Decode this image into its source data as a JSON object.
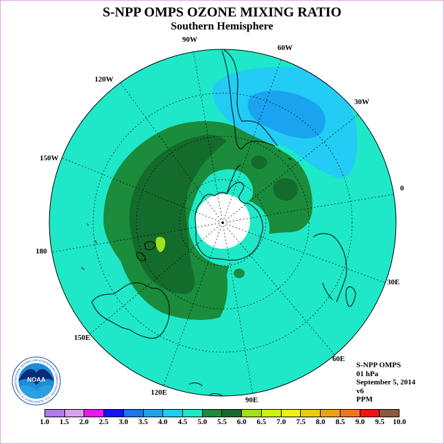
{
  "header": {
    "title": "S-NPP OMPS OZONE MIXING RATIO",
    "subtitle": "Southern Hemisphere"
  },
  "map": {
    "projection": "south-polar-stereographic",
    "longitude_labels": [
      "90W",
      "60W",
      "120W",
      "30W",
      "150W",
      "0",
      "180",
      "30E",
      "150E",
      "60E",
      "120E",
      "90E"
    ],
    "field_regions": [
      {
        "name": "background",
        "range": "4.5-5.0",
        "color": "#1ee8c8"
      },
      {
        "name": "south-atlantic-low",
        "range": "4.0-4.5",
        "color": "#22ccf5"
      },
      {
        "name": "south-atlantic-low-core",
        "range": "3.5-4.0",
        "color": "#1aa4f0"
      },
      {
        "name": "polar-ring",
        "range": "5.0-5.5",
        "color": "#1a8c3c"
      },
      {
        "name": "polar-ring-core",
        "range": "5.5-6.0",
        "color": "#146c2c"
      },
      {
        "name": "small-max",
        "range": "6.0-6.5",
        "color": "#a0e01e"
      },
      {
        "name": "polar-night-no-data",
        "range": "",
        "color": "#ffffff"
      }
    ]
  },
  "info": {
    "instrument": "S-NPP OMPS",
    "level": "01 hPa",
    "date": "September 5, 2014",
    "version": "v6",
    "units": "PPM"
  },
  "colorbar": {
    "labels": [
      "1.0",
      "1.5",
      "2.0",
      "2.5",
      "3.0",
      "3.5",
      "4.0",
      "4.5",
      "5.0",
      "5.5",
      "6.0",
      "6.5",
      "7.0",
      "7.5",
      "8.0",
      "8.5",
      "9.0",
      "9.5",
      "10.0"
    ],
    "colors": [
      "#b478f0",
      "#d8a0f0",
      "#f014f0",
      "#1414f0",
      "#1478f0",
      "#1aa4f0",
      "#22ccf5",
      "#1ee8c8",
      "#1a8c3c",
      "#146c2c",
      "#a0e01e",
      "#ccf014",
      "#f0f014",
      "#f0c814",
      "#f0a014",
      "#f07814",
      "#f01414",
      "#8c5a3c"
    ]
  },
  "logo": {
    "text": "NOAA",
    "ring_text": "NATIONAL OCEANIC AND ATMOSPHERIC ADMINISTRATION · U.S. DEPARTMENT OF COMMERCE"
  }
}
